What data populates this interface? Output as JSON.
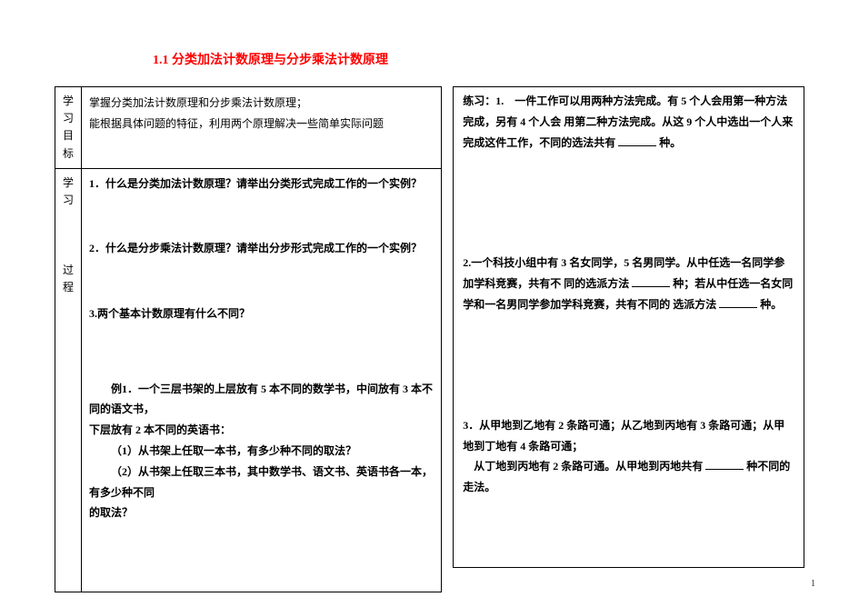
{
  "title": "1.1 分类加法计数原理与分步乘法计数原理",
  "labels": {
    "goal": "学习\n目标",
    "process": "学习\n\n\n\n过程"
  },
  "goal": {
    "line1": "掌握分类加法计数原理和分步乘法计数原理；",
    "line2": "能根据具体问题的特征，利用两个原理解决一些简单实际问题"
  },
  "process": {
    "q1": "1．什么是分类加法计数原理？请举出分类形式完成工作的一个实例？",
    "q2": "2．什么是分步乘法计数原理？请举出分步形式完成工作的一个实例？",
    "q3": "3.两个基本计数原理有什么不同？",
    "ex_intro": "例1．一个三层书架的上层放有 5 本不同的数学书，中间放有 3 本不同的语文书，",
    "ex_line2": "下层放有 2 本不同的英语书：",
    "ex_sub1": "（1）从书架上任取一本书，有多少种不同的取法？",
    "ex_sub2": "（2）从书架上任取三本书，其中数学书、语文书、英语书各一本，有多少种不同",
    "ex_sub3": "的取法？"
  },
  "right": {
    "ex1_a": "练习：1.　一件工作可以用两种方法完成。有 5 个人会用第一种方法完成，另有 4 个人会",
    "ex1_b": "用第二种方法完成。从这 9 个人中选出一个人来完成这件工作，不同的选法共有",
    "ex1_c": "种。",
    "ex2_a": "2.一个科技小组中有 3 名女同学，5 名男同学。从中任选一名同学参加学科竞赛，共有不",
    "ex2_b": "同的选派方法",
    "ex2_c": "种；若从中任选一名女同学和一名男同学参加学科竞赛，共有不同的",
    "ex2_d": "选派方法",
    "ex2_e": "种。",
    "ex3_a": "3．从甲地到乙地有 2 条路可通；从乙地到丙地有 3 条路可通；从甲地到丁地有 4 条路可通；",
    "ex3_b": "从丁地到丙地有 2 条路可通。从甲地到丙地共有",
    "ex3_c": "种不同的走法。"
  },
  "pagenum": "1",
  "colors": {
    "title": "#ff0000",
    "text": "#000000",
    "bg": "#ffffff"
  },
  "fontsize": {
    "title": 14,
    "body": 12
  }
}
